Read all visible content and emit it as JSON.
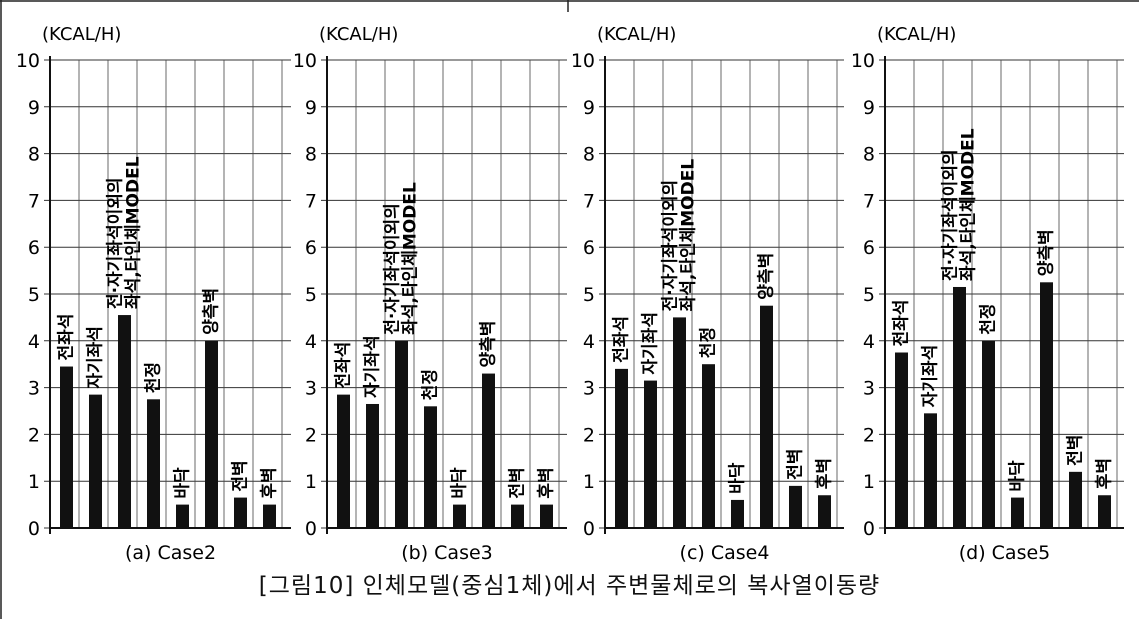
{
  "figure_caption": "[그림10] 인체모델(중심1체)에서 주변물체로의 복사열이동량",
  "chart_data": [
    {
      "type": "bar",
      "subtitle": "(a) Case2",
      "ylabel": "(KCAL/H)",
      "ylim": [
        0,
        10
      ],
      "yticks": [
        0,
        1,
        2,
        3,
        4,
        5,
        6,
        7,
        8,
        9,
        10
      ],
      "grid": true,
      "categories": [
        "전좌석",
        "자기좌석",
        "전·자기좌석이외의 좌석,타인체MODEL",
        "천정",
        "바닥",
        "양측벽",
        "전벽",
        "후벽"
      ],
      "values": [
        3.45,
        2.85,
        4.55,
        2.75,
        0.5,
        4.0,
        0.65,
        0.5
      ]
    },
    {
      "type": "bar",
      "subtitle": "(b) Case3",
      "ylabel": "(KCAL/H)",
      "ylim": [
        0,
        10
      ],
      "yticks": [
        0,
        1,
        2,
        3,
        4,
        5,
        6,
        7,
        8,
        9,
        10
      ],
      "grid": true,
      "categories": [
        "전좌석",
        "자기좌석",
        "전·자기좌석이외의 좌석,타인체MODEL",
        "천정",
        "바닥",
        "양측벽",
        "전벽",
        "후벽"
      ],
      "values": [
        2.85,
        2.65,
        4.0,
        2.6,
        0.5,
        3.3,
        0.5,
        0.5
      ]
    },
    {
      "type": "bar",
      "subtitle": "(c) Case4",
      "ylabel": "(KCAL/H)",
      "ylim": [
        0,
        10
      ],
      "yticks": [
        0,
        1,
        2,
        3,
        4,
        5,
        6,
        7,
        8,
        9,
        10
      ],
      "grid": true,
      "categories": [
        "전좌석",
        "자기좌석",
        "전·자기좌석이외의 좌석,타인체MODEL",
        "천정",
        "바닥",
        "양측벽",
        "전벽",
        "후벽"
      ],
      "values": [
        3.4,
        3.15,
        4.5,
        3.5,
        0.6,
        4.75,
        0.9,
        0.7
      ]
    },
    {
      "type": "bar",
      "subtitle": "(d) Case5",
      "ylabel": "(KCAL/H)",
      "ylim": [
        0,
        10
      ],
      "yticks": [
        0,
        1,
        2,
        3,
        4,
        5,
        6,
        7,
        8,
        9,
        10
      ],
      "grid": true,
      "categories": [
        "전좌석",
        "자기좌석",
        "전·자기좌석이외의 좌석,타인체MODEL",
        "천정",
        "바닥",
        "양측벽",
        "전벽",
        "후벽"
      ],
      "values": [
        3.75,
        2.45,
        5.15,
        4.0,
        0.65,
        5.25,
        1.2,
        0.7
      ]
    }
  ]
}
